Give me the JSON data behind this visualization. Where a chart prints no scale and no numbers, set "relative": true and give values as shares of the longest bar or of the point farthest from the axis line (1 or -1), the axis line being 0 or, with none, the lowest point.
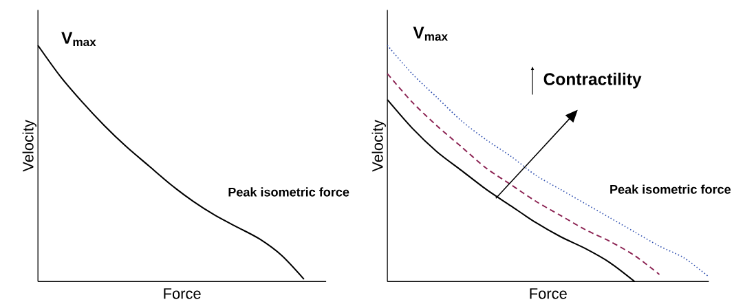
{
  "chart_data": [
    {
      "type": "line",
      "relative": true,
      "xlabel": "Force",
      "ylabel": "Velocity",
      "categories": [
        null,
        null,
        null,
        null,
        null,
        null,
        null,
        null,
        null,
        null,
        null,
        null,
        null,
        null
      ],
      "series": [
        {
          "color": "#000000",
          "line_style": "solid",
          "values": [
            1.0,
            0.87,
            0.76,
            0.66,
            0.57,
            0.49,
            0.41,
            0.34,
            0.28,
            0.23,
            0.18,
            0.11,
            0.01,
            null
          ]
        }
      ],
      "annotations": [
        "V$_{max}$",
        "Peak isometric force"
      ]
    },
    {
      "type": "line",
      "relative": true,
      "xlabel": "Force",
      "ylabel": "Velocity",
      "categories": [
        null,
        null,
        null,
        null,
        null,
        null,
        null,
        null,
        null,
        null,
        null,
        null,
        null,
        null
      ],
      "series": [
        {
          "color": "#000000",
          "line_style": "solid",
          "values": [
            0.77,
            0.65,
            0.55,
            0.47,
            0.39,
            0.32,
            0.25,
            0.19,
            0.14,
            0.08,
            0.0,
            null,
            null,
            null
          ]
        },
        {
          "color": "#8b2252",
          "line_style": "dashed",
          "values": [
            0.88,
            0.76,
            0.66,
            0.57,
            0.48,
            0.41,
            0.34,
            0.28,
            0.22,
            0.17,
            0.11,
            0.03,
            null,
            null
          ]
        },
        {
          "color": "#3050b0",
          "line_style": "dotted",
          "values": [
            1.0,
            0.88,
            0.78,
            0.68,
            0.6,
            0.53,
            0.45,
            0.39,
            0.33,
            0.27,
            0.21,
            0.15,
            0.1,
            0.02
          ]
        }
      ],
      "annotations": [
        "V$_{max}$",
        "Contractility",
        "Peak isometric force"
      ]
    }
  ]
}
